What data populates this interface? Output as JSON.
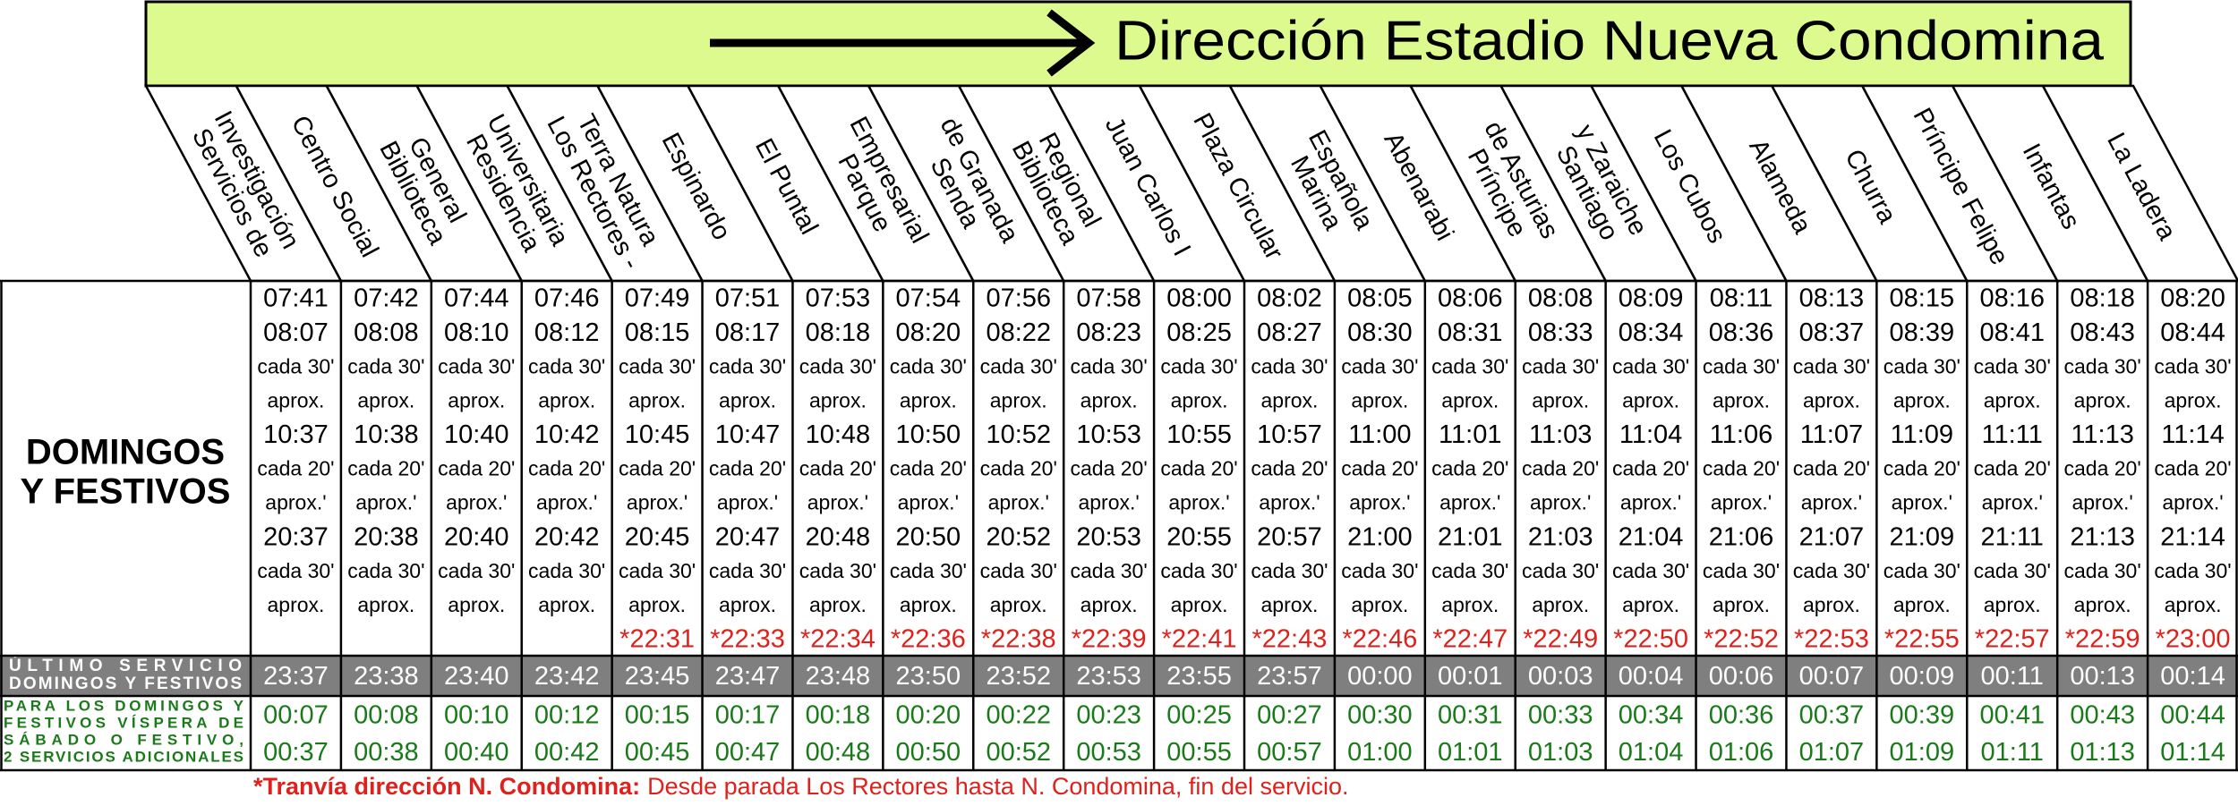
{
  "header": {
    "title": "Dirección Estadio Nueva Condomina"
  },
  "table": {
    "label": [
      "DOMINGOS",
      "Y FESTIVOS"
    ],
    "columns": [
      [
        "Servicios de",
        "Investigación"
      ],
      [
        "Centro Social"
      ],
      [
        "Biblioteca",
        "General"
      ],
      [
        "Residencia",
        "Universitaria"
      ],
      [
        "Los Rectores -",
        "Terra Natura"
      ],
      [
        "Espinardo"
      ],
      [
        "El Puntal"
      ],
      [
        "Parque",
        "Empresarial"
      ],
      [
        "Senda",
        "de Granada"
      ],
      [
        "Biblioteca",
        "Regional"
      ],
      [
        "Juan Carlos I"
      ],
      [
        "Plaza Circular"
      ],
      [
        "Marina",
        "Española"
      ],
      [
        "Abenarabi"
      ],
      [
        "Príncipe",
        "de Asturias"
      ],
      [
        "Santiago",
        "y Zaraiche"
      ],
      [
        "Los Cubos"
      ],
      [
        "Alameda"
      ],
      [
        "Churra"
      ],
      [
        "Príncipe Felipe"
      ],
      [
        "Infantas"
      ],
      [
        "La Ladera"
      ]
    ],
    "rows": [
      [
        "07:41",
        "07:42",
        "07:44",
        "07:46",
        "07:49",
        "07:51",
        "07:53",
        "07:54",
        "07:56",
        "07:58",
        "08:00",
        "08:02",
        "08:05",
        "08:06",
        "08:08",
        "08:09",
        "08:11",
        "08:13",
        "08:15",
        "08:16",
        "08:18",
        "08:20"
      ],
      [
        "08:07",
        "08:08",
        "08:10",
        "08:12",
        "08:15",
        "08:17",
        "08:18",
        "08:20",
        "08:22",
        "08:23",
        "08:25",
        "08:27",
        "08:30",
        "08:31",
        "08:33",
        "08:34",
        "08:36",
        "08:37",
        "08:39",
        "08:41",
        "08:43",
        "08:44"
      ],
      [
        "cada 30'",
        "cada 30'",
        "cada 30'",
        "cada 30'",
        "cada 30'",
        "cada 30'",
        "cada 30'",
        "cada 30'",
        "cada 30'",
        "cada 30'",
        "cada 30'",
        "cada 30'",
        "cada 30'",
        "cada 30'",
        "cada 30'",
        "cada 30'",
        "cada 30'",
        "cada 30'",
        "cada 30'",
        "cada 30'",
        "cada 30'",
        "cada 30'"
      ],
      [
        "aprox.",
        "aprox.",
        "aprox.",
        "aprox.",
        "aprox.",
        "aprox.",
        "aprox.",
        "aprox.",
        "aprox.",
        "aprox.",
        "aprox.",
        "aprox.",
        "aprox.",
        "aprox.",
        "aprox.",
        "aprox.",
        "aprox.",
        "aprox.",
        "aprox.",
        "aprox.",
        "aprox.",
        "aprox."
      ],
      [
        "10:37",
        "10:38",
        "10:40",
        "10:42",
        "10:45",
        "10:47",
        "10:48",
        "10:50",
        "10:52",
        "10:53",
        "10:55",
        "10:57",
        "11:00",
        "11:01",
        "11:03",
        "11:04",
        "11:06",
        "11:07",
        "11:09",
        "11:11",
        "11:13",
        "11:14"
      ],
      [
        "cada 20'",
        "cada 20'",
        "cada 20'",
        "cada 20'",
        "cada 20'",
        "cada 20'",
        "cada 20'",
        "cada 20'",
        "cada 20'",
        "cada 20'",
        "cada 20'",
        "cada 20'",
        "cada 20'",
        "cada 20'",
        "cada 20'",
        "cada 20'",
        "cada 20'",
        "cada 20'",
        "cada 20'",
        "cada 20'",
        "cada 20'",
        "cada 20'"
      ],
      [
        "aprox.'",
        "aprox.'",
        "aprox.'",
        "aprox.'",
        "aprox.'",
        "aprox.'",
        "aprox.'",
        "aprox.'",
        "aprox.'",
        "aprox.'",
        "aprox.'",
        "aprox.'",
        "aprox.'",
        "aprox.'",
        "aprox.'",
        "aprox.'",
        "aprox.'",
        "aprox.'",
        "aprox.'",
        "aprox.'",
        "aprox.'",
        "aprox.'"
      ],
      [
        "20:37",
        "20:38",
        "20:40",
        "20:42",
        "20:45",
        "20:47",
        "20:48",
        "20:50",
        "20:52",
        "20:53",
        "20:55",
        "20:57",
        "21:00",
        "21:01",
        "21:03",
        "21:04",
        "21:06",
        "21:07",
        "21:09",
        "21:11",
        "21:13",
        "21:14"
      ],
      [
        "cada 30'",
        "cada 30'",
        "cada 30'",
        "cada 30'",
        "cada 30'",
        "cada 30'",
        "cada 30'",
        "cada 30'",
        "cada 30'",
        "cada 30'",
        "cada 30'",
        "cada 30'",
        "cada 30'",
        "cada 30'",
        "cada 30'",
        "cada 30'",
        "cada 30'",
        "cada 30'",
        "cada 30'",
        "cada 30'",
        "cada 30'",
        "cada 30'"
      ],
      [
        "aprox.",
        "aprox.",
        "aprox.",
        "aprox.",
        "aprox.",
        "aprox.",
        "aprox.",
        "aprox.",
        "aprox.",
        "aprox.",
        "aprox.",
        "aprox.",
        "aprox.",
        "aprox.",
        "aprox.",
        "aprox.",
        "aprox.",
        "aprox.",
        "aprox.",
        "aprox.",
        "aprox.",
        "aprox."
      ],
      [
        null,
        null,
        null,
        null,
        "*22:31",
        "*22:33",
        "*22:34",
        "*22:36",
        "*22:38",
        "*22:39",
        "*22:41",
        "*22:43",
        "*22:46",
        "*22:47",
        "*22:49",
        "*22:50",
        "*22:52",
        "*22:53",
        "*22:55",
        "*22:57",
        "*22:59",
        "*23:00"
      ]
    ],
    "last_label": [
      "ÚLTIMO SERVICIO",
      "DOMINGOS Y FESTIVOS"
    ],
    "last": [
      "23:37",
      "23:38",
      "23:40",
      "23:42",
      "23:45",
      "23:47",
      "23:48",
      "23:50",
      "23:52",
      "23:53",
      "23:55",
      "23:57",
      "00:00",
      "00:01",
      "00:03",
      "00:04",
      "00:06",
      "00:07",
      "00:09",
      "00:11",
      "00:13",
      "00:14"
    ],
    "extra_label": [
      "PARA LOS DOMINGOS Y",
      "FESTIVOS VÍSPERA DE",
      "SÁBADO O FESTIVO,",
      "2 SERVICIOS ADICIONALES"
    ],
    "extra": [
      [
        "00:07",
        "00:08",
        "00:10",
        "00:12",
        "00:15",
        "00:17",
        "00:18",
        "00:20",
        "00:22",
        "00:23",
        "00:25",
        "00:27",
        "00:30",
        "00:31",
        "00:33",
        "00:34",
        "00:36",
        "00:37",
        "00:39",
        "00:41",
        "00:43",
        "00:44"
      ],
      [
        "00:37",
        "00:38",
        "00:40",
        "00:42",
        "00:45",
        "00:47",
        "00:48",
        "00:50",
        "00:52",
        "00:53",
        "00:55",
        "00:57",
        "01:00",
        "01:01",
        "01:03",
        "01:04",
        "01:06",
        "01:07",
        "01:09",
        "01:11",
        "01:13",
        "01:14"
      ]
    ]
  },
  "footnote": {
    "bold": "*Tranvía dirección N. Condomina:",
    "text": "Desde parada Los Rectores hasta N. Condomina, fin del servicio."
  }
}
